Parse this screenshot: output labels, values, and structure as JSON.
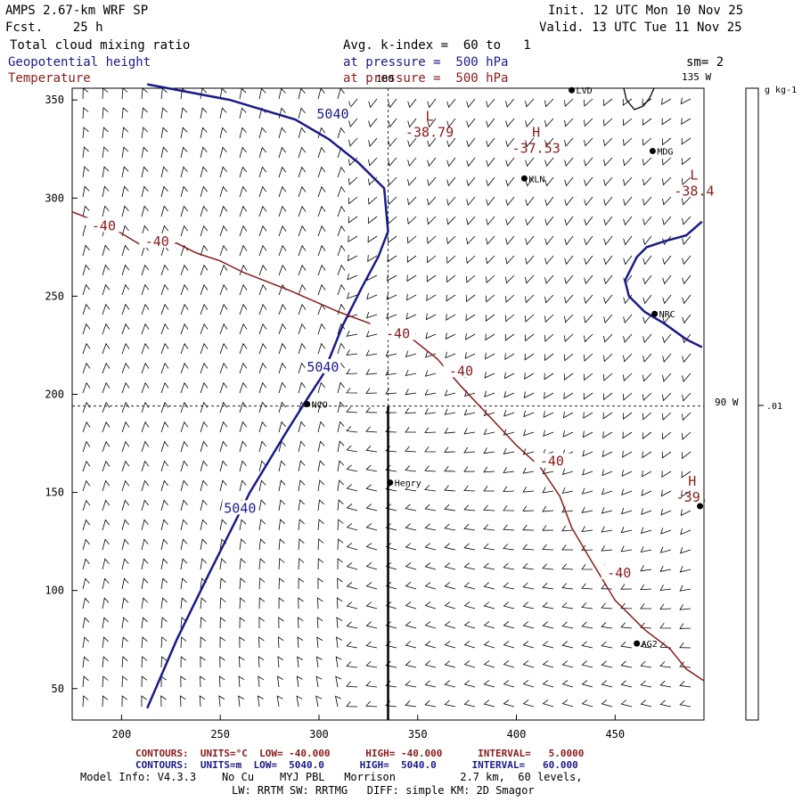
{
  "header": {
    "model": "AMPS 2.67-km WRF SP",
    "forecast": "Fcst.    25 h",
    "init": "Init. 12 UTC Mon 10 Nov 25",
    "valid": "Valid. 13 UTC Tue 11 Nov 25",
    "field1": "Total cloud mixing ratio",
    "field2": "Geopotential height",
    "field3": "Temperature",
    "avg": "Avg. k-index =  60 to   1",
    "pressure1": "at pressure =  500 hPa",
    "pressure2": "at pressure =  500 hPa",
    "smoothing": "sm= 2"
  },
  "colorbar": {
    "unit": "g kg-1",
    "tick": ".01"
  },
  "map_labels": {
    "lon180": "180",
    "lon135": "135 W",
    "lon90": "90 W"
  },
  "chart_data": {
    "type": "contour",
    "xlim": [
      175,
      495
    ],
    "ylim": [
      34,
      356
    ],
    "x_ticks": [
      "200",
      "250",
      "300",
      "350",
      "400",
      "450"
    ],
    "y_ticks": [
      "50",
      "100",
      "150",
      "200",
      "250",
      "300",
      "350"
    ],
    "height_contours": [
      {
        "level": "5040",
        "points": [
          [
            213,
            40
          ],
          [
            228,
            75
          ],
          [
            245,
            110
          ],
          [
            265,
            150
          ],
          [
            283,
            180
          ],
          [
            293,
            196
          ],
          [
            302,
            210
          ],
          [
            312,
            235
          ],
          [
            322,
            255
          ],
          [
            330,
            270
          ],
          [
            335,
            283
          ],
          [
            333,
            305
          ],
          [
            320,
            318
          ],
          [
            305,
            330
          ],
          [
            288,
            340
          ],
          [
            255,
            350
          ],
          [
            213,
            358
          ]
        ],
        "labels": [
          {
            "text": "5040",
            "x": 307,
            "y": 342
          },
          {
            "text": "5040",
            "x": 302,
            "y": 213
          },
          {
            "text": "5040",
            "x": 260,
            "y": 141
          }
        ]
      },
      {
        "level": "5040",
        "points": [
          [
            494,
            288
          ],
          [
            486,
            281
          ],
          [
            475,
            278
          ],
          [
            466,
            275
          ],
          [
            461,
            270
          ],
          [
            455,
            258
          ],
          [
            457,
            250
          ],
          [
            465,
            242
          ],
          [
            475,
            236
          ],
          [
            486,
            228
          ],
          [
            494,
            224
          ]
        ],
        "labels": []
      }
    ],
    "temperature_contours": [
      {
        "level": "-40",
        "points": [
          [
            175,
            293
          ],
          [
            195,
            285
          ],
          [
            210,
            276
          ],
          [
            228,
            277
          ],
          [
            238,
            272
          ],
          [
            250,
            268
          ],
          [
            262,
            262
          ],
          [
            285,
            253
          ],
          [
            310,
            242
          ],
          [
            326,
            236
          ]
        ],
        "labels": [
          {
            "text": "-40",
            "x": 191,
            "y": 285
          },
          {
            "text": "-40",
            "x": 218,
            "y": 277
          }
        ]
      },
      {
        "level": "-40",
        "points": [
          [
            345,
            230
          ],
          [
            360,
            218
          ],
          [
            372,
            204
          ],
          [
            388,
            187
          ],
          [
            400,
            174
          ],
          [
            412,
            163
          ],
          [
            422,
            148
          ],
          [
            428,
            132
          ],
          [
            438,
            115
          ],
          [
            450,
            95
          ],
          [
            465,
            80
          ],
          [
            478,
            70
          ],
          [
            486,
            60
          ],
          [
            495,
            54
          ]
        ],
        "labels": [
          {
            "text": "-40",
            "x": 340,
            "y": 230
          },
          {
            "text": "-40",
            "x": 372,
            "y": 211
          },
          {
            "text": "-40",
            "x": 418,
            "y": 165
          },
          {
            "text": "-40",
            "x": 452,
            "y": 108
          }
        ]
      }
    ],
    "extrema": [
      {
        "kind": "L",
        "value": "-38.79",
        "x": 356,
        "y": 333
      },
      {
        "kind": "H",
        "value": "-37.53",
        "x": 410,
        "y": 325
      },
      {
        "kind": "L",
        "value": "-38.4",
        "x": 490,
        "y": 303
      },
      {
        "kind": "H",
        "value": "-39.",
        "x": 489,
        "y": 147
      }
    ],
    "stations": [
      {
        "name": "LVD",
        "x": 428,
        "y": 355
      },
      {
        "name": "MDG",
        "x": 469,
        "y": 324
      },
      {
        "name": "KLN",
        "x": 404,
        "y": 310
      },
      {
        "name": "NRC",
        "x": 470,
        "y": 241
      },
      {
        "name": "NCO",
        "x": 294,
        "y": 195
      },
      {
        "name": "Henry",
        "x": 336,
        "y": 155
      },
      {
        "name": "AG2",
        "x": 461,
        "y": 73
      },
      {
        "name": "",
        "x": 493,
        "y": 143
      }
    ],
    "grid_lines": {
      "vertical_lon180_x": 335,
      "horizontal_lon90_y": 194
    },
    "cross_section_line": {
      "x": 335,
      "y_from": 194,
      "y_to": 34
    }
  },
  "footer": {
    "contours_temp": "CONTOURS:  UNITS=°C  LOW= -40.000      HIGH= -40.000      INTERVAL=   5.0000",
    "contours_height": "CONTOURS:  UNITS=m  LOW=  5040.0      HIGH=  5040.0      INTERVAL=   60.000",
    "model_info": "Model Info: V4.3.3    No Cu    MYJ PBL   Morrison          2.7 km,  60 levels,",
    "model_info2": "LW: RRTM SW: RRTMG   DIFF: simple KM: 2D Smagor"
  },
  "colors": {
    "height": "#1a1a8c",
    "temperature": "#8b1a1a",
    "barbs": "#000000"
  }
}
